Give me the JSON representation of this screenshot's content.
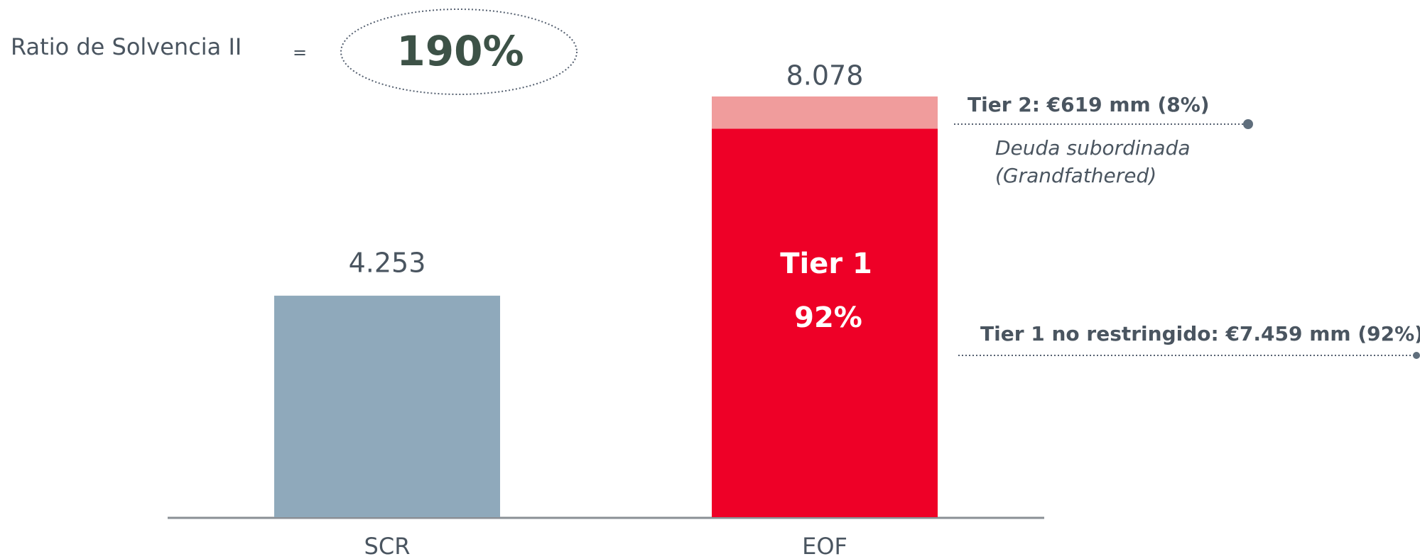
{
  "chart_data": {
    "type": "stacked_bar",
    "title": "Ratio de Solvencia II",
    "equals": "=",
    "ratio_label": "190%",
    "categories": [
      "SCR",
      "EOF"
    ],
    "series": [
      {
        "color": "#8fa9bb",
        "values": [
          4253,
          null
        ],
        "value_labels": [
          "4.253",
          null
        ]
      },
      {
        "color": "#ee0027",
        "values": [
          null,
          7459
        ],
        "inner_labels": [
          null,
          "Tier 1"
        ],
        "inner_sublabels": [
          null,
          "92%"
        ]
      },
      {
        "color": "#f09c9c",
        "values": [
          null,
          619
        ]
      }
    ],
    "total": 8078,
    "total_label": "8.078",
    "annotations": {
      "tier2": "Tier 2: €619 mm (8%)",
      "tier2_note_1": "Deuda subordinada",
      "tier2_note_2": "(Grandfathered)",
      "tier1": "Tier 1 no restringido: €7.459 mm (92%)"
    }
  }
}
